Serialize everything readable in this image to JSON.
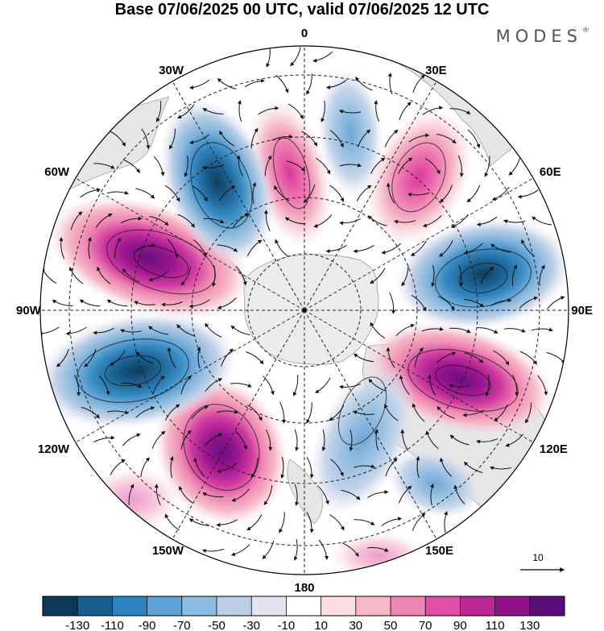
{
  "header": {
    "title": "Base 07/06/2025 00 UTC, valid 07/06/2025 12 UTC",
    "logo_text": "MODES",
    "logo_mark": "®"
  },
  "map": {
    "projection": "south-polar-stereographic",
    "longitude_labels": [
      {
        "text": "0",
        "lon": 0
      },
      {
        "text": "30E",
        "lon": 30
      },
      {
        "text": "60E",
        "lon": 60
      },
      {
        "text": "90E",
        "lon": 90
      },
      {
        "text": "120E",
        "lon": 120
      },
      {
        "text": "150E",
        "lon": 150
      },
      {
        "text": "180",
        "lon": 180
      },
      {
        "text": "150W",
        "lon": -150
      },
      {
        "text": "120W",
        "lon": -120
      },
      {
        "text": "90W",
        "lon": -90
      },
      {
        "text": "60W",
        "lon": -60
      },
      {
        "text": "30W",
        "lon": -30
      }
    ],
    "field_anomalies": [
      {
        "id": "lobe-0",
        "sign": "positive",
        "peak": 70
      },
      {
        "id": "lobe-30e",
        "sign": "positive",
        "peak": 80
      },
      {
        "id": "lobe-75e",
        "sign": "negative",
        "peak": -90
      },
      {
        "id": "lobe-110e",
        "sign": "positive",
        "peak": 130
      },
      {
        "id": "lobe-160e",
        "sign": "negative",
        "peak": -70
      },
      {
        "id": "lobe-140w",
        "sign": "positive",
        "peak": 120
      },
      {
        "id": "lobe-100w",
        "sign": "negative",
        "peak": -130
      },
      {
        "id": "lobe-70w",
        "sign": "positive",
        "peak": 130
      },
      {
        "id": "lobe-30w",
        "sign": "negative",
        "peak": -130
      },
      {
        "id": "lobe-15e",
        "sign": "negative",
        "peak": -50
      }
    ],
    "reference_vector": {
      "label": "10"
    },
    "land_color": "#ececec",
    "ocean_color": "#ffffff"
  },
  "colorbar": {
    "colors": [
      "#0b3957",
      "#175f8f",
      "#2d83be",
      "#5aa3d4",
      "#8cbce1",
      "#bccfe7",
      "#e4e4f0",
      "#ffffff",
      "#f9dde2",
      "#f6b9c8",
      "#ef86b3",
      "#e04fa6",
      "#bd2795",
      "#8e1388",
      "#5b0d7a"
    ],
    "labels": [
      "-130",
      "-110",
      "-90",
      "-70",
      "-50",
      "-30",
      "-10",
      "10",
      "30",
      "50",
      "70",
      "90",
      "110",
      "130"
    ]
  }
}
